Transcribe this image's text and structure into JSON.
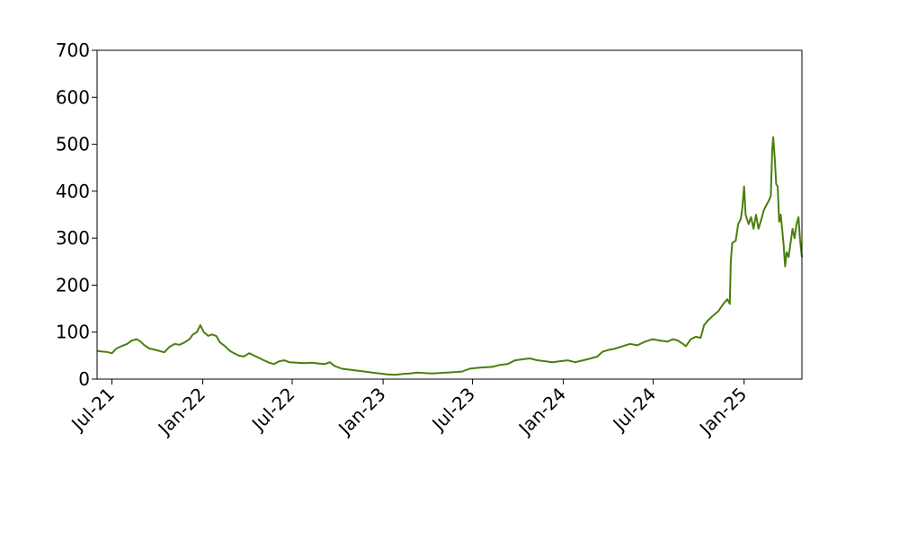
{
  "chart_data": {
    "type": "line",
    "title": "",
    "xlabel": "",
    "ylabel": "",
    "ylim": [
      0,
      700
    ],
    "xlim": [
      "2021-06-01",
      "2025-04-28"
    ],
    "grid": false,
    "line_color": "#4a7f0e",
    "yticks": [
      {
        "value": 0,
        "label": "0"
      },
      {
        "value": 100,
        "label": "100"
      },
      {
        "value": 200,
        "label": "200"
      },
      {
        "value": 300,
        "label": "300"
      },
      {
        "value": 400,
        "label": "400"
      },
      {
        "value": 500,
        "label": "500"
      },
      {
        "value": 600,
        "label": "600"
      },
      {
        "value": 700,
        "label": "700"
      }
    ],
    "xticks": [
      {
        "date": "2021-07-01",
        "label": "Jul-21"
      },
      {
        "date": "2022-01-01",
        "label": "Jan-22"
      },
      {
        "date": "2022-07-01",
        "label": "Jul-22"
      },
      {
        "date": "2023-01-01",
        "label": "Jan-23"
      },
      {
        "date": "2023-07-01",
        "label": "Jul-23"
      },
      {
        "date": "2024-01-01",
        "label": "Jan-24"
      },
      {
        "date": "2024-07-01",
        "label": "Jul-24"
      },
      {
        "date": "2025-01-01",
        "label": "Jan-25"
      }
    ],
    "series": [
      {
        "points": [
          [
            "2021-06-01",
            60
          ],
          [
            "2021-06-10",
            59
          ],
          [
            "2021-06-20",
            58
          ],
          [
            "2021-07-01",
            55
          ],
          [
            "2021-07-10",
            65
          ],
          [
            "2021-07-20",
            70
          ],
          [
            "2021-08-01",
            75
          ],
          [
            "2021-08-10",
            82
          ],
          [
            "2021-08-20",
            85
          ],
          [
            "2021-08-28",
            80
          ],
          [
            "2021-09-05",
            72
          ],
          [
            "2021-09-15",
            65
          ],
          [
            "2021-09-25",
            63
          ],
          [
            "2021-10-05",
            60
          ],
          [
            "2021-10-15",
            57
          ],
          [
            "2021-10-25",
            68
          ],
          [
            "2021-11-05",
            75
          ],
          [
            "2021-11-15",
            73
          ],
          [
            "2021-11-25",
            78
          ],
          [
            "2021-12-05",
            85
          ],
          [
            "2021-12-12",
            95
          ],
          [
            "2021-12-20",
            100
          ],
          [
            "2021-12-27",
            115
          ],
          [
            "2022-01-03",
            100
          ],
          [
            "2022-01-12",
            92
          ],
          [
            "2022-01-20",
            95
          ],
          [
            "2022-01-28",
            92
          ],
          [
            "2022-02-05",
            78
          ],
          [
            "2022-02-15",
            70
          ],
          [
            "2022-02-25",
            60
          ],
          [
            "2022-03-05",
            55
          ],
          [
            "2022-03-15",
            50
          ],
          [
            "2022-03-25",
            48
          ],
          [
            "2022-04-05",
            55
          ],
          [
            "2022-04-15",
            50
          ],
          [
            "2022-04-25",
            45
          ],
          [
            "2022-05-05",
            40
          ],
          [
            "2022-05-15",
            35
          ],
          [
            "2022-05-25",
            32
          ],
          [
            "2022-06-05",
            38
          ],
          [
            "2022-06-15",
            40
          ],
          [
            "2022-06-25",
            36
          ],
          [
            "2022-07-10",
            35
          ],
          [
            "2022-07-25",
            34
          ],
          [
            "2022-08-10",
            35
          ],
          [
            "2022-08-25",
            33
          ],
          [
            "2022-09-05",
            32
          ],
          [
            "2022-09-15",
            36
          ],
          [
            "2022-09-25",
            28
          ],
          [
            "2022-10-10",
            22
          ],
          [
            "2022-10-25",
            20
          ],
          [
            "2022-11-10",
            18
          ],
          [
            "2022-11-25",
            16
          ],
          [
            "2022-12-10",
            14
          ],
          [
            "2022-12-25",
            12
          ],
          [
            "2023-01-10",
            10
          ],
          [
            "2023-01-25",
            9
          ],
          [
            "2023-02-10",
            11
          ],
          [
            "2023-02-25",
            12
          ],
          [
            "2023-03-10",
            14
          ],
          [
            "2023-03-25",
            13
          ],
          [
            "2023-04-10",
            12
          ],
          [
            "2023-04-25",
            13
          ],
          [
            "2023-05-10",
            14
          ],
          [
            "2023-05-25",
            15
          ],
          [
            "2023-06-10",
            16
          ],
          [
            "2023-06-25",
            22
          ],
          [
            "2023-07-10",
            24
          ],
          [
            "2023-07-25",
            25
          ],
          [
            "2023-08-10",
            26
          ],
          [
            "2023-08-25",
            30
          ],
          [
            "2023-09-10",
            32
          ],
          [
            "2023-09-25",
            40
          ],
          [
            "2023-10-10",
            42
          ],
          [
            "2023-10-25",
            44
          ],
          [
            "2023-11-10",
            40
          ],
          [
            "2023-11-25",
            38
          ],
          [
            "2023-12-10",
            36
          ],
          [
            "2023-12-25",
            38
          ],
          [
            "2024-01-10",
            40
          ],
          [
            "2024-01-25",
            36
          ],
          [
            "2024-02-10",
            40
          ],
          [
            "2024-02-25",
            44
          ],
          [
            "2024-03-10",
            48
          ],
          [
            "2024-03-20",
            58
          ],
          [
            "2024-04-01",
            62
          ],
          [
            "2024-04-15",
            65
          ],
          [
            "2024-04-30",
            70
          ],
          [
            "2024-05-15",
            75
          ],
          [
            "2024-05-30",
            72
          ],
          [
            "2024-06-15",
            80
          ],
          [
            "2024-06-30",
            85
          ],
          [
            "2024-07-15",
            82
          ],
          [
            "2024-07-30",
            80
          ],
          [
            "2024-08-10",
            85
          ],
          [
            "2024-08-20",
            82
          ],
          [
            "2024-08-30",
            75
          ],
          [
            "2024-09-05",
            70
          ],
          [
            "2024-09-15",
            85
          ],
          [
            "2024-09-25",
            90
          ],
          [
            "2024-10-05",
            88
          ],
          [
            "2024-10-12",
            115
          ],
          [
            "2024-10-20",
            125
          ],
          [
            "2024-10-30",
            135
          ],
          [
            "2024-11-10",
            145
          ],
          [
            "2024-11-20",
            160
          ],
          [
            "2024-11-28",
            170
          ],
          [
            "2024-12-03",
            160
          ],
          [
            "2024-12-05",
            250
          ],
          [
            "2024-12-08",
            290
          ],
          [
            "2024-12-15",
            295
          ],
          [
            "2024-12-20",
            330
          ],
          [
            "2024-12-25",
            340
          ],
          [
            "2024-12-28",
            360
          ],
          [
            "2025-01-01",
            410
          ],
          [
            "2025-01-04",
            350
          ],
          [
            "2025-01-10",
            330
          ],
          [
            "2025-01-15",
            345
          ],
          [
            "2025-01-20",
            320
          ],
          [
            "2025-01-25",
            350
          ],
          [
            "2025-01-30",
            320
          ],
          [
            "2025-02-05",
            340
          ],
          [
            "2025-02-10",
            360
          ],
          [
            "2025-02-15",
            370
          ],
          [
            "2025-02-20",
            380
          ],
          [
            "2025-02-24",
            390
          ],
          [
            "2025-02-27",
            490
          ],
          [
            "2025-03-01",
            515
          ],
          [
            "2025-03-04",
            470
          ],
          [
            "2025-03-07",
            415
          ],
          [
            "2025-03-10",
            410
          ],
          [
            "2025-03-13",
            335
          ],
          [
            "2025-03-16",
            350
          ],
          [
            "2025-03-19",
            320
          ],
          [
            "2025-03-22",
            285
          ],
          [
            "2025-03-25",
            240
          ],
          [
            "2025-03-28",
            270
          ],
          [
            "2025-04-01",
            260
          ],
          [
            "2025-04-05",
            290
          ],
          [
            "2025-04-09",
            320
          ],
          [
            "2025-04-13",
            300
          ],
          [
            "2025-04-17",
            330
          ],
          [
            "2025-04-21",
            345
          ],
          [
            "2025-04-24",
            300
          ],
          [
            "2025-04-28",
            260
          ]
        ]
      }
    ]
  }
}
